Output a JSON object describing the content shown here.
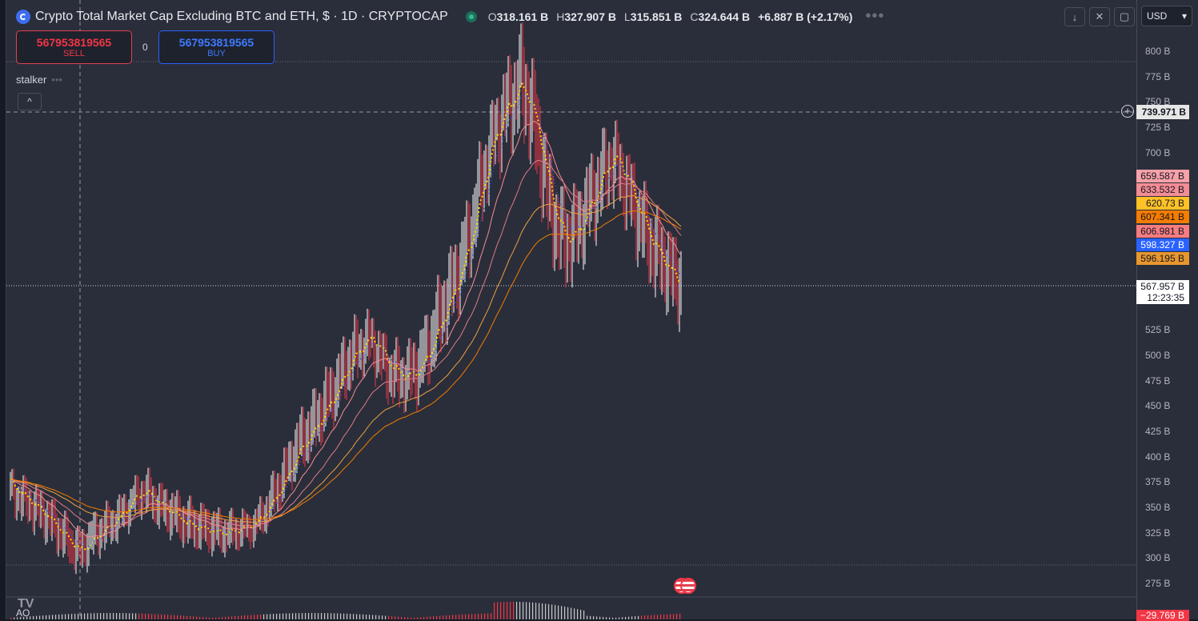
{
  "header": {
    "title": "Crypto Total Market Cap Excluding BTC and ETH, $ · 1D · CRYPTOCAP",
    "ohlc": [
      {
        "k": "O",
        "v": "318.161 B"
      },
      {
        "k": "H",
        "v": "327.907 B"
      },
      {
        "k": "L",
        "v": "315.851 B"
      },
      {
        "k": "C",
        "v": "324.644 B"
      }
    ],
    "change": "+6.887 B (+2.17%)",
    "more": "•••"
  },
  "toolbar": {
    "download_icon": "↓",
    "collapse_icon": "✕",
    "fullscreen_icon": "▢",
    "currency": "USD",
    "currency_caret": "▾"
  },
  "trade": {
    "sell_price": "567953819565",
    "sell_label": "SELL",
    "buy_price": "567953819565",
    "buy_label": "BUY",
    "spread": "0"
  },
  "indicator": {
    "name": "stalker",
    "dots": "•••",
    "collapse": "^"
  },
  "price_axis": {
    "ticks": [
      "800 B",
      "775 B",
      "750 B",
      "725 B",
      "700 B",
      "525 B",
      "500 B",
      "475 B",
      "450 B",
      "425 B",
      "400 B",
      "375 B",
      "350 B",
      "325 B",
      "300 B",
      "275 B"
    ],
    "crosshair_price": "739.971 B",
    "labels": [
      {
        "text": "659.587 B",
        "bg": "#f7a1a8",
        "fg": "#131722"
      },
      {
        "text": "633.532 B",
        "bg": "#f48c94",
        "fg": "#131722"
      },
      {
        "text": "620.73 B",
        "bg": "#ffc125",
        "fg": "#131722"
      },
      {
        "text": "607.341 B",
        "bg": "#f57c00",
        "fg": "#131722"
      },
      {
        "text": "606.981 B",
        "bg": "#f77c80",
        "fg": "#131722"
      },
      {
        "text": "598.327 B",
        "bg": "#2962ff",
        "fg": "#ffffff"
      },
      {
        "text": "596.195 B",
        "bg": "#e8962e",
        "fg": "#131722"
      }
    ],
    "last_price": "567.957 B",
    "countdown": "12:23:35",
    "ao_value": "−29.769 B"
  },
  "ao_label": "AO",
  "logo_text": "TV",
  "colors": {
    "up": "#ffffff",
    "down": "#f23645",
    "ema_yellow": "#ffd600",
    "ema_orange": "#f57c00",
    "ema_pink": "#f48c94"
  },
  "chart_data": {
    "type": "candlestick",
    "ylim": [
      275,
      800
    ],
    "y_unit": "B",
    "close_approx": [
      370,
      362,
      355,
      348,
      340,
      330,
      320,
      310,
      305,
      318,
      325,
      332,
      340,
      350,
      362,
      368,
      360,
      350,
      345,
      338,
      332,
      330,
      328,
      326,
      324,
      326,
      330,
      332,
      338,
      350,
      365,
      380,
      400,
      415,
      425,
      440,
      455,
      470,
      490,
      505,
      515,
      520,
      500,
      485,
      480,
      478,
      485,
      500,
      520,
      545,
      565,
      590,
      620,
      660,
      700,
      730,
      745,
      760,
      770,
      740,
      700,
      650,
      620,
      610,
      620,
      640,
      660,
      680,
      700,
      690,
      665,
      640,
      620,
      600,
      590,
      575,
      570
    ]
  }
}
